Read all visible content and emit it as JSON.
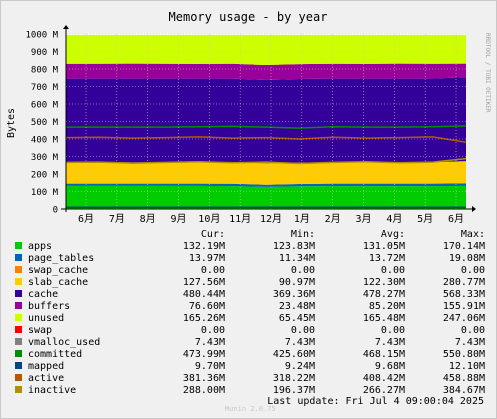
{
  "colors": {
    "background": "#f0f0f0",
    "plot_background": "#ffffff",
    "grid": "#d0d0d0",
    "axis": "#000000"
  },
  "chart_data": {
    "type": "area",
    "title": "Memory usage - by year",
    "ylabel": "Bytes",
    "side_label": "RRDTOOL / TOBI OETIKER",
    "ylim": [
      0,
      1000000000
    ],
    "yticks": [
      "0",
      "100 M",
      "200 M",
      "300 M",
      "400 M",
      "500 M",
      "600 M",
      "700 M",
      "800 M",
      "900 M",
      "1000 M"
    ],
    "xticks": [
      "6月",
      "7月",
      "8月",
      "9月",
      "10月",
      "11月",
      "12月",
      "1月",
      "2月",
      "3月",
      "4月",
      "5月",
      "6月"
    ],
    "grid": true,
    "stacked_series": [
      {
        "name": "apps",
        "color": "#00cc00",
        "values": [
          132000000,
          132000000,
          132000000,
          132000000,
          132000000,
          131000000,
          126000000,
          130000000,
          131000000,
          131000000,
          131000000,
          131000000,
          132000000
        ]
      },
      {
        "name": "page_tables",
        "color": "#0066b3",
        "values": [
          13000000,
          13000000,
          13000000,
          13000000,
          13000000,
          13000000,
          13000000,
          13000000,
          14000000,
          14000000,
          14000000,
          14000000,
          14000000
        ]
      },
      {
        "name": "swap_cache",
        "color": "#ff8000",
        "values": [
          0,
          0,
          0,
          0,
          0,
          0,
          0,
          0,
          0,
          0,
          0,
          0,
          0
        ]
      },
      {
        "name": "slab_cache",
        "color": "#ffcc00",
        "values": [
          122000000,
          123000000,
          121000000,
          122000000,
          123000000,
          122000000,
          122000000,
          122000000,
          121000000,
          122000000,
          123000000,
          122000000,
          128000000
        ]
      },
      {
        "name": "cache",
        "color": "#330099",
        "values": [
          478000000,
          477000000,
          479000000,
          478000000,
          477000000,
          479000000,
          476000000,
          478000000,
          479000000,
          478000000,
          477000000,
          478000000,
          480000000
        ]
      },
      {
        "name": "buffers",
        "color": "#990099",
        "values": [
          85000000,
          85000000,
          86000000,
          85000000,
          84000000,
          85000000,
          86000000,
          85000000,
          85000000,
          84000000,
          86000000,
          85000000,
          77000000
        ]
      },
      {
        "name": "unused",
        "color": "#ccff00",
        "values": [
          165000000,
          165000000,
          164000000,
          165000000,
          166000000,
          165000000,
          172000000,
          167000000,
          165000000,
          166000000,
          164000000,
          165000000,
          164000000
        ]
      }
    ],
    "line_series": [
      {
        "name": "committed",
        "color": "#008f00",
        "values": [
          468000000,
          468000000,
          468000000,
          468000000,
          470000000,
          472000000,
          468000000,
          462000000,
          470000000,
          468000000,
          468000000,
          470000000,
          474000000
        ]
      },
      {
        "name": "mapped",
        "color": "#00487d",
        "values": [
          9700000,
          9700000,
          9700000,
          9700000,
          9700000,
          9700000,
          9700000,
          9700000,
          9700000,
          9700000,
          9700000,
          9700000,
          9700000
        ]
      },
      {
        "name": "active",
        "color": "#b35a00",
        "values": [
          408000000,
          410000000,
          405000000,
          408000000,
          412000000,
          405000000,
          408000000,
          400000000,
          410000000,
          405000000,
          408000000,
          412000000,
          381000000
        ]
      },
      {
        "name": "inactive",
        "color": "#b38f00",
        "values": [
          266000000,
          268000000,
          262000000,
          266000000,
          270000000,
          264000000,
          268000000,
          260000000,
          266000000,
          270000000,
          264000000,
          268000000,
          288000000
        ]
      }
    ]
  },
  "legend": {
    "headers": {
      "cur": "Cur:",
      "min": "Min:",
      "avg": "Avg:",
      "max": "Max:"
    },
    "rows": [
      {
        "name": "apps",
        "color": "#00cc00",
        "cur": "132.19M",
        "min": "123.83M",
        "avg": "131.05M",
        "max": "170.14M"
      },
      {
        "name": "page_tables",
        "color": "#0066b3",
        "cur": "13.97M",
        "min": "11.34M",
        "avg": "13.72M",
        "max": "19.08M"
      },
      {
        "name": "swap_cache",
        "color": "#ff8000",
        "cur": "0.00",
        "min": "0.00",
        "avg": "0.00",
        "max": "0.00"
      },
      {
        "name": "slab_cache",
        "color": "#ffcc00",
        "cur": "127.56M",
        "min": "90.97M",
        "avg": "122.30M",
        "max": "280.77M"
      },
      {
        "name": "cache",
        "color": "#330099",
        "cur": "480.44M",
        "min": "369.36M",
        "avg": "478.27M",
        "max": "568.33M"
      },
      {
        "name": "buffers",
        "color": "#990099",
        "cur": "76.60M",
        "min": "23.48M",
        "avg": "85.20M",
        "max": "155.91M"
      },
      {
        "name": "unused",
        "color": "#ccff00",
        "cur": "165.26M",
        "min": "65.45M",
        "avg": "165.48M",
        "max": "247.06M"
      },
      {
        "name": "swap",
        "color": "#ff0000",
        "cur": "0.00",
        "min": "0.00",
        "avg": "0.00",
        "max": "0.00"
      },
      {
        "name": "vmalloc_used",
        "color": "#808080",
        "cur": "7.43M",
        "min": "7.43M",
        "avg": "7.43M",
        "max": "7.43M"
      },
      {
        "name": "committed",
        "color": "#008f00",
        "cur": "473.99M",
        "min": "425.60M",
        "avg": "468.15M",
        "max": "550.80M"
      },
      {
        "name": "mapped",
        "color": "#00487d",
        "cur": "9.70M",
        "min": "9.24M",
        "avg": "9.68M",
        "max": "12.10M"
      },
      {
        "name": "active",
        "color": "#b35a00",
        "cur": "381.36M",
        "min": "318.22M",
        "avg": "408.42M",
        "max": "458.88M"
      },
      {
        "name": "inactive",
        "color": "#b38f00",
        "cur": "288.00M",
        "min": "196.37M",
        "avg": "266.27M",
        "max": "384.67M"
      }
    ]
  },
  "footer": {
    "munin_version": "Munin 2.0.75",
    "last_update": "Last update: Fri Jul  4 09:00:04 2025"
  }
}
